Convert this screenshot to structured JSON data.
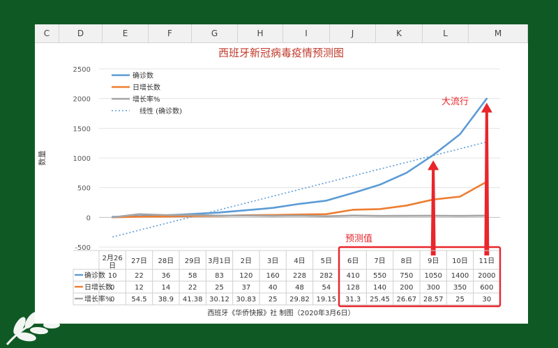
{
  "columns": [
    "C",
    "D",
    "E",
    "F",
    "G",
    "H",
    "I",
    "J",
    "K",
    "L",
    "M"
  ],
  "chart_data": {
    "type": "line",
    "title": "西班牙新冠病毒疫情预测图",
    "ylabel": "数量",
    "ylim": [
      -500,
      2500
    ],
    "yticks": [
      -500,
      0,
      500,
      1000,
      1500,
      2000,
      2500
    ],
    "grid": true,
    "legend_position": "top-left",
    "categories": [
      "2月26日",
      "27日",
      "28日",
      "29日",
      "3月1日",
      "2日",
      "3日",
      "4日",
      "5日",
      "6日",
      "7日",
      "8日",
      "9日",
      "10日",
      "11日"
    ],
    "series": [
      {
        "name": "确诊数",
        "color": "#5b9bd5",
        "values": [
          10,
          22,
          36,
          58,
          83,
          120,
          160,
          228,
          282,
          410,
          550,
          750,
          1050,
          1400,
          2000
        ]
      },
      {
        "name": "日增长数",
        "color": "#ed7d31",
        "values": [
          0,
          12,
          14,
          22,
          25,
          37,
          40,
          48,
          54,
          128,
          140,
          200,
          300,
          350,
          600
        ]
      },
      {
        "name": "增长率%",
        "color": "#a5a5a5",
        "values": [
          0,
          54.5,
          38.9,
          41.38,
          30.12,
          30.83,
          25,
          29.82,
          19.15,
          31.3,
          25.45,
          26.67,
          28.57,
          25,
          30
        ]
      }
    ],
    "trendline": {
      "name": "线性 (确诊数)",
      "color": "#5b9bd5",
      "start": -330,
      "end": 1270
    },
    "table_display": [
      [
        "10",
        "22",
        "36",
        "58",
        "83",
        "120",
        "160",
        "228",
        "282",
        "410",
        "550",
        "750",
        "1050",
        "1400",
        "2000"
      ],
      [
        "0",
        "12",
        "14",
        "22",
        "25",
        "37",
        "40",
        "48",
        "54",
        "128",
        "140",
        "200",
        "300",
        "350",
        "600"
      ],
      [
        "0",
        "54.5",
        "38.9",
        "41.38",
        "30.12",
        "30.83",
        "25",
        "29.82",
        "19.15",
        "31.3",
        "25.45",
        "26.67",
        "28.57",
        "25",
        "30"
      ]
    ],
    "annotations": {
      "peak": "大流行",
      "forecast": "预测值",
      "source": "西班牙《华侨快报》社 制图（2020年3月6日）"
    }
  }
}
